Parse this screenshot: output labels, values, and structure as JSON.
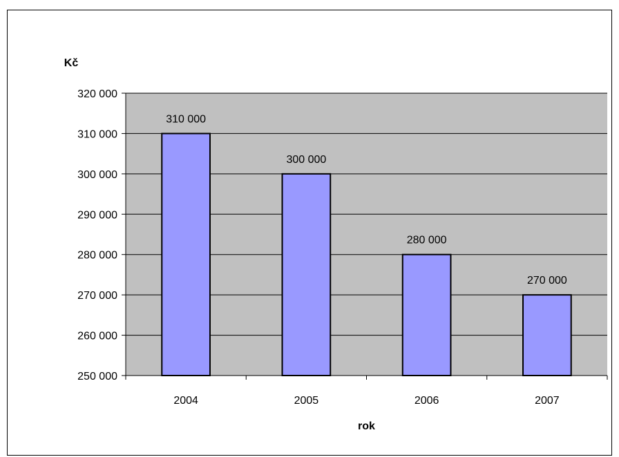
{
  "chart_data": {
    "type": "bar",
    "title": "",
    "xlabel": "rok",
    "ylabel": "Kč",
    "categories": [
      "2004",
      "2005",
      "2006",
      "2007"
    ],
    "values": [
      310000,
      300000,
      280000,
      270000
    ],
    "data_labels": [
      "310 000",
      "300 000",
      "280 000",
      "270 000"
    ],
    "ylim": [
      250000,
      320000
    ],
    "yticks": [
      250000,
      260000,
      270000,
      280000,
      290000,
      300000,
      310000,
      320000
    ],
    "ytick_labels": [
      "250 000",
      "260 000",
      "270 000",
      "280 000",
      "290 000",
      "300 000",
      "310 000",
      "320 000"
    ],
    "grid": true,
    "legend": "none",
    "colors": {
      "bar_fill": "#9999ff",
      "bar_stroke": "#000000",
      "plot_background": "#c0c0c0",
      "gridline": "#000000",
      "page_background": "#ffffff"
    }
  }
}
